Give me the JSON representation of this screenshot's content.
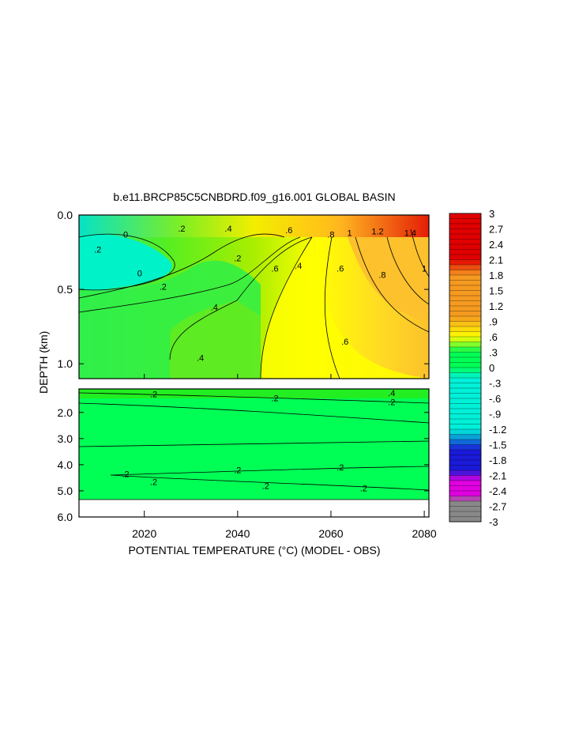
{
  "chart_data": {
    "type": "contour",
    "title": "b.e11.BRCP85C5CNBDRD.f09_g16.001 GLOBAL BASIN",
    "xlabel": "POTENTIAL TEMPERATURE (",
    "xlabel_unit": "°C",
    "xlabel_tail": ") (MODEL - OBS)",
    "ylabel": "DEPTH (km)",
    "xlim": [
      2006,
      2081
    ],
    "x_ticks": [
      2020,
      2040,
      2060,
      2080
    ],
    "x_tick_labels": [
      "2020",
      "2040",
      "2060",
      "2080"
    ],
    "panels": [
      {
        "name": "upper",
        "ylim": [
          0.0,
          1.1
        ],
        "y_ticks": [
          0.0,
          0.5,
          1.0
        ],
        "y_tick_labels": [
          "0.0",
          "0.5",
          "1.0"
        ],
        "contour_labels": [
          {
            "text": ".2",
            "x": 2010,
            "y": 0.23
          },
          {
            "text": "0",
            "x": 2016,
            "y": 0.13
          },
          {
            "text": "0",
            "x": 2019,
            "y": 0.39
          },
          {
            "text": ".2",
            "x": 2024,
            "y": 0.48
          },
          {
            "text": ".2",
            "x": 2028,
            "y": 0.09
          },
          {
            "text": ".4",
            "x": 2038,
            "y": 0.09
          },
          {
            "text": ".2",
            "x": 2040,
            "y": 0.29
          },
          {
            "text": ".6",
            "x": 2048,
            "y": 0.36
          },
          {
            "text": ".4",
            "x": 2053,
            "y": 0.34
          },
          {
            "text": ".4",
            "x": 2035,
            "y": 0.62
          },
          {
            "text": ".4",
            "x": 2032,
            "y": 0.96
          },
          {
            "text": ".6",
            "x": 2051,
            "y": 0.1
          },
          {
            "text": ".8",
            "x": 2060,
            "y": 0.13
          },
          {
            "text": "1",
            "x": 2064,
            "y": 0.12
          },
          {
            "text": ".6",
            "x": 2062,
            "y": 0.36
          },
          {
            "text": ".6",
            "x": 2063,
            "y": 0.85
          },
          {
            "text": "1.2",
            "x": 2070,
            "y": 0.11
          },
          {
            "text": ".8",
            "x": 2071,
            "y": 0.4
          },
          {
            "text": "1.4",
            "x": 2077,
            "y": 0.12
          },
          {
            "text": "1",
            "x": 2080,
            "y": 0.36
          }
        ]
      },
      {
        "name": "lower",
        "ylim": [
          1.1,
          6.0
        ],
        "y_ticks": [
          2.0,
          3.0,
          4.0,
          5.0,
          6.0
        ],
        "y_tick_labels": [
          "2.0",
          "3.0",
          "4.0",
          "5.0",
          "6.0"
        ],
        "contour_labels": [
          {
            "text": ".2",
            "x": 2022,
            "y": 1.3
          },
          {
            "text": ".2",
            "x": 2048,
            "y": 1.45
          },
          {
            "text": ".4",
            "x": 2073,
            "y": 1.25
          },
          {
            "text": ".2",
            "x": 2073,
            "y": 1.6
          },
          {
            "text": ".2",
            "x": 2016,
            "y": 4.35
          },
          {
            "text": ".2",
            "x": 2022,
            "y": 4.65
          },
          {
            "text": ".2",
            "x": 2040,
            "y": 4.2
          },
          {
            "text": ".2",
            "x": 2062,
            "y": 4.1
          },
          {
            "text": ".2",
            "x": 2046,
            "y": 4.8
          },
          {
            "text": ".2",
            "x": 2067,
            "y": 4.9
          }
        ]
      }
    ],
    "colorbar": {
      "min": -3,
      "max": 3,
      "step": 0.1,
      "labels": [
        "3",
        "2.7",
        "2.4",
        "2.1",
        "1.8",
        "1.5",
        "1.2",
        ".9",
        ".6",
        ".3",
        "0",
        "-.3",
        "-.6",
        "-.9",
        "-1.2",
        "-1.5",
        "-1.8",
        "-2.1",
        "-2.4",
        "-2.7",
        "-3"
      ]
    },
    "colors": {
      "red": "#e00000",
      "orange": "#f59a20",
      "yellow": "#ffff00",
      "green": "#00ff55",
      "cyan": "#00f0d8",
      "blue": "#1a1ad8",
      "magenta": "#e000e0",
      "gray": "#888888"
    }
  }
}
